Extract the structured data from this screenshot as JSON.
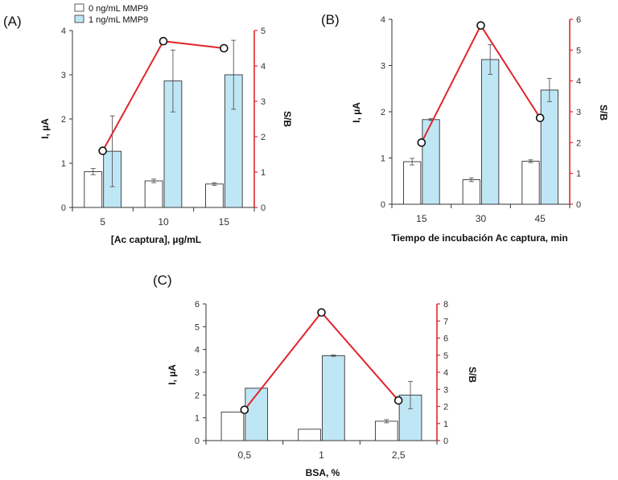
{
  "colors": {
    "bar0": "#ffffff",
    "bar1": "#bfe6f5",
    "line": "#e0262b",
    "axis": "#333333",
    "raxis": "#e0262b"
  },
  "legend": {
    "items": [
      "0 ng/mL MMP9",
      "1 ng/mL MMP9"
    ]
  },
  "chart_data": [
    {
      "type": "bar",
      "panel_label": "(A)",
      "categories": [
        "5",
        "10",
        "15"
      ],
      "xlabel": "[Ac captura], µg/mL",
      "ylabel": "I, µA",
      "y2label": "S/B",
      "ylim": [
        0,
        4
      ],
      "y2lim": [
        0,
        5
      ],
      "yticks": [
        0,
        1,
        2,
        3,
        4
      ],
      "y2ticks": [
        0,
        1,
        2,
        3,
        4,
        5
      ],
      "series": [
        {
          "name": "0 ng/mL MMP9",
          "values": [
            0.81,
            0.6,
            0.53
          ],
          "errors": [
            0.07,
            0.04,
            0.03
          ]
        },
        {
          "name": "1 ng/mL MMP9",
          "values": [
            1.27,
            2.86,
            3.0
          ],
          "errors": [
            0.8,
            0.7,
            0.78
          ]
        }
      ],
      "line": {
        "axis": "y2",
        "values": [
          1.6,
          4.7,
          4.5
        ]
      }
    },
    {
      "type": "bar",
      "panel_label": "(B)",
      "categories": [
        "15",
        "30",
        "45"
      ],
      "xlabel": "Tiempo de incubación Ac captura, min",
      "ylabel": "I, µA",
      "y2label": "S/B",
      "ylim": [
        0,
        4
      ],
      "y2lim": [
        0,
        6
      ],
      "yticks": [
        0,
        1,
        2,
        3,
        4
      ],
      "y2ticks": [
        0,
        1,
        2,
        3,
        4,
        5,
        6
      ],
      "series": [
        {
          "name": "0 ng/mL MMP9",
          "values": [
            0.92,
            0.53,
            0.93
          ],
          "errors": [
            0.07,
            0.04,
            0.03
          ]
        },
        {
          "name": "1 ng/mL MMP9",
          "values": [
            1.83,
            3.13,
            2.47
          ],
          "errors": [
            0.02,
            0.32,
            0.25
          ]
        }
      ],
      "line": {
        "axis": "y2",
        "values": [
          2.0,
          5.8,
          2.8
        ]
      }
    },
    {
      "type": "bar",
      "panel_label": "(C)",
      "categories": [
        "0,5",
        "1",
        "2,5"
      ],
      "xlabel": "BSA, %",
      "ylabel": "I, µA",
      "y2label": "S/B",
      "ylim": [
        0,
        6
      ],
      "y2lim": [
        0,
        8
      ],
      "yticks": [
        0,
        1,
        2,
        3,
        4,
        5,
        6
      ],
      "y2ticks": [
        0,
        1,
        2,
        3,
        4,
        5,
        6,
        7,
        8
      ],
      "series": [
        {
          "name": "0 ng/mL MMP9",
          "values": [
            1.25,
            0.5,
            0.85
          ],
          "errors": [
            0.0,
            0.0,
            0.07
          ]
        },
        {
          "name": "1 ng/mL MMP9",
          "values": [
            2.3,
            3.73,
            2.0
          ],
          "errors": [
            0.0,
            0.03,
            0.6
          ]
        }
      ],
      "line": {
        "axis": "y2",
        "values": [
          1.8,
          7.5,
          2.35
        ]
      }
    }
  ]
}
